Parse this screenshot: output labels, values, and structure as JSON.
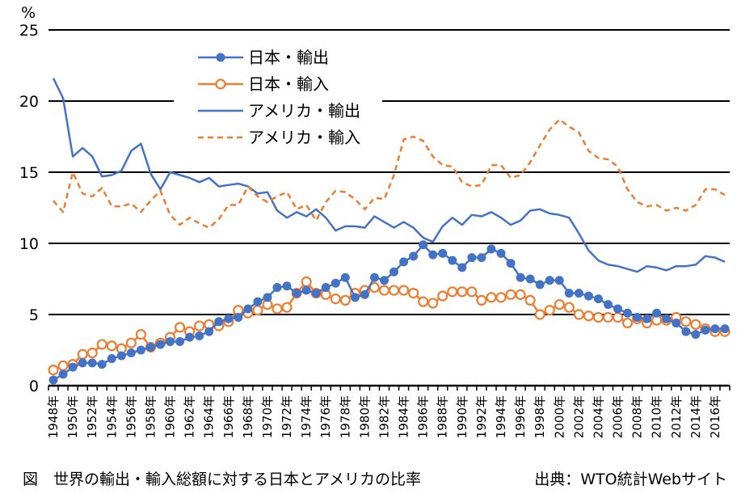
{
  "chart_data": {
    "type": "line",
    "title": "",
    "ylabel": "%",
    "xlabel": "",
    "ylim": [
      0,
      25
    ],
    "yticks": [
      0,
      5,
      10,
      15,
      20,
      25
    ],
    "grid": true,
    "legend_position": "top-center",
    "x": [
      1948,
      1949,
      1950,
      1951,
      1952,
      1953,
      1954,
      1955,
      1956,
      1957,
      1958,
      1959,
      1960,
      1961,
      1962,
      1963,
      1964,
      1965,
      1966,
      1967,
      1968,
      1969,
      1970,
      1971,
      1972,
      1973,
      1974,
      1975,
      1976,
      1977,
      1978,
      1979,
      1980,
      1981,
      1982,
      1983,
      1984,
      1985,
      1986,
      1987,
      1988,
      1989,
      1990,
      1991,
      1992,
      1993,
      1994,
      1995,
      1996,
      1997,
      1998,
      1999,
      2000,
      2001,
      2002,
      2003,
      2004,
      2005,
      2006,
      2007,
      2008,
      2009,
      2010,
      2011,
      2012,
      2013,
      2014,
      2015,
      2016,
      2017
    ],
    "x_tick_labels": [
      "1948年",
      "1950年",
      "1952年",
      "1954年",
      "1956年",
      "1958年",
      "1960年",
      "1962年",
      "1964年",
      "1966年",
      "1968年",
      "1970年",
      "1972年",
      "1974年",
      "1976年",
      "1978年",
      "1980年",
      "1982年",
      "1984年",
      "1986年",
      "1988年",
      "1990年",
      "1992年",
      "1994年",
      "1996年",
      "1998年",
      "2000年",
      "2002年",
      "2004年",
      "2006年",
      "2008年",
      "2010年",
      "2012年",
      "2014年",
      "2016年"
    ],
    "series": [
      {
        "name": "日本・輸出",
        "color": "#4472C4",
        "style": "solid-filled-marker",
        "values": [
          0.4,
          0.8,
          1.3,
          1.6,
          1.6,
          1.5,
          1.9,
          2.1,
          2.3,
          2.5,
          2.7,
          2.9,
          3.1,
          3.1,
          3.4,
          3.5,
          3.8,
          4.5,
          4.7,
          4.8,
          5.4,
          5.9,
          6.2,
          6.9,
          7.0,
          6.5,
          6.7,
          6.5,
          6.9,
          7.2,
          7.6,
          6.2,
          6.4,
          7.6,
          7.4,
          8.0,
          8.7,
          9.1,
          9.9,
          9.2,
          9.3,
          8.8,
          8.3,
          9.0,
          9.0,
          9.6,
          9.3,
          8.6,
          7.6,
          7.5,
          7.1,
          7.4,
          7.4,
          6.5,
          6.5,
          6.3,
          6.1,
          5.7,
          5.4,
          5.1,
          4.8,
          4.7,
          5.1,
          4.7,
          4.4,
          3.8,
          3.6,
          3.9,
          4.0,
          4.0
        ]
      },
      {
        "name": "日本・輸入",
        "color": "#ED7D31",
        "style": "solid-hollow-marker",
        "values": [
          1.1,
          1.4,
          1.5,
          2.2,
          2.3,
          2.9,
          2.8,
          2.6,
          3.0,
          3.6,
          2.7,
          3.0,
          3.4,
          4.1,
          3.8,
          4.2,
          4.3,
          4.2,
          4.5,
          5.3,
          5.1,
          5.3,
          5.7,
          5.4,
          5.5,
          6.5,
          7.3,
          6.5,
          6.4,
          6.1,
          6.0,
          6.5,
          6.7,
          6.9,
          6.7,
          6.7,
          6.7,
          6.5,
          5.9,
          5.8,
          6.3,
          6.6,
          6.6,
          6.6,
          6.0,
          6.2,
          6.2,
          6.4,
          6.4,
          6.0,
          5.0,
          5.3,
          5.7,
          5.5,
          5.0,
          4.9,
          4.8,
          4.8,
          4.8,
          4.4,
          4.7,
          4.4,
          4.6,
          4.6,
          4.8,
          4.5,
          4.3,
          4.0,
          3.8,
          3.8
        ]
      },
      {
        "name": "アメリカ・輸出",
        "color": "#4472C4",
        "style": "solid",
        "values": [
          21.6,
          20.2,
          16.1,
          16.7,
          16.1,
          14.7,
          14.8,
          15.1,
          16.5,
          17.0,
          14.9,
          13.8,
          15.0,
          14.8,
          14.6,
          14.3,
          14.6,
          14.0,
          14.1,
          14.2,
          14.0,
          13.5,
          13.6,
          12.3,
          11.8,
          12.2,
          11.9,
          12.4,
          11.8,
          10.9,
          11.2,
          11.2,
          11.1,
          11.9,
          11.5,
          11.1,
          11.5,
          11.1,
          10.4,
          10.1,
          11.2,
          11.8,
          11.3,
          12.0,
          11.9,
          12.2,
          11.8,
          11.3,
          11.6,
          12.3,
          12.4,
          12.1,
          12.0,
          11.8,
          10.7,
          9.5,
          8.8,
          8.5,
          8.4,
          8.2,
          8.0,
          8.4,
          8.3,
          8.1,
          8.4,
          8.4,
          8.5,
          9.1,
          9.0,
          8.7
        ]
      },
      {
        "name": "アメリカ・輸入",
        "color": "#ED7D31",
        "style": "dashed",
        "values": [
          13.0,
          12.2,
          15.0,
          13.5,
          13.3,
          13.9,
          12.6,
          12.6,
          12.8,
          12.2,
          13.0,
          13.7,
          12.0,
          11.3,
          11.8,
          11.4,
          11.1,
          11.7,
          12.7,
          12.7,
          14.0,
          13.3,
          12.9,
          13.3,
          13.6,
          12.4,
          12.7,
          11.6,
          12.9,
          13.7,
          13.6,
          13.1,
          12.4,
          13.2,
          13.1,
          14.8,
          17.3,
          17.5,
          17.2,
          16.1,
          15.5,
          15.4,
          14.3,
          14.0,
          14.1,
          15.5,
          15.5,
          14.6,
          14.8,
          15.7,
          16.9,
          18.0,
          18.7,
          18.2,
          17.8,
          16.5,
          16.0,
          15.9,
          15.4,
          13.8,
          12.9,
          12.6,
          12.7,
          12.3,
          12.5,
          12.3,
          12.7,
          13.8,
          13.8,
          13.4
        ]
      }
    ]
  },
  "caption": {
    "left": "図　世界の輸出・輸入総額に対する日本とアメリカの比率",
    "right": "出典：WTO統計Webサイト"
  }
}
